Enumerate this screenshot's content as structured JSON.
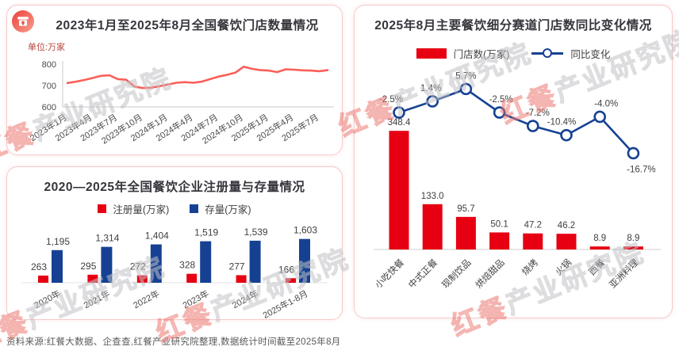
{
  "page": {
    "footer": "资料来源:红餐大数据、企查查,红餐产业研究院整理,数据统计时间截至2025年8月",
    "watermark_red": "红餐",
    "watermark_gray": "产业研究院",
    "colors": {
      "accent_red": "#e60012",
      "coral_line": "#fa5f58",
      "navy": "#164193",
      "title_dark": "#35353c",
      "unit_red": "#b5443c",
      "card_border": "#f6caca",
      "footer_gray": "#595959"
    }
  },
  "chart_data": [
    {
      "id": "store-count-trend",
      "type": "line",
      "title": "2023年1月至2025年8月全国餐饮门店数量情况",
      "unit_label": "单位:万家",
      "tick_labels": [
        "2023年1月",
        "2023年4月",
        "2023年7月",
        "2023年10月",
        "2024年1月",
        "2024年4月",
        "2024年7月",
        "2024年10月",
        "2025年1月",
        "2025年4月",
        "2025年7月"
      ],
      "values": [
        712,
        718,
        726,
        735,
        745,
        748,
        730,
        727,
        695,
        688,
        690,
        697,
        705,
        713,
        716,
        713,
        718,
        730,
        742,
        750,
        760,
        788,
        778,
        772,
        770,
        763,
        776,
        774,
        771,
        770,
        767,
        772
      ],
      "ylim": [
        600,
        800
      ],
      "yticks": [
        800,
        700,
        600
      ],
      "line_color": "#fa5f58",
      "grid": false,
      "legend_position": "none"
    },
    {
      "id": "registration-stock",
      "type": "bar",
      "title": "2020—2025年全国餐饮企业注册量与存量情况",
      "categories": [
        "2020年",
        "2021年",
        "2022年",
        "2023年",
        "2024年",
        "2025年1-8月"
      ],
      "series": [
        {
          "name": "注册量(万家)",
          "color": "#e60012",
          "values": [
            263,
            295,
            272,
            328,
            277,
            166
          ],
          "labels": [
            "263",
            "295",
            "272",
            "328",
            "277",
            "166"
          ]
        },
        {
          "name": "存量(万家)",
          "color": "#164193",
          "values": [
            1195,
            1314,
            1404,
            1519,
            1539,
            1603
          ],
          "labels": [
            "1,195",
            "1,314",
            "1,404",
            "1,519",
            "1,539",
            "1,603"
          ]
        }
      ],
      "grid": false,
      "legend_position": "top"
    },
    {
      "id": "segment-yoy",
      "type": "bar_line_combo",
      "title": "2025年8月主要餐饮细分赛道门店数同比变化情况",
      "categories": [
        "小吃快餐",
        "中式正餐",
        "现制饮品",
        "烘焙甜品",
        "烧烤",
        "火锅",
        "西餐",
        "亚洲料理"
      ],
      "bar_series": {
        "name": "门店数(万家)",
        "color": "#e60012",
        "values": [
          348.4,
          133.0,
          95.7,
          50.1,
          47.2,
          46.2,
          8.9,
          8.9
        ],
        "labels": [
          "348.4",
          "133.0",
          "95.7",
          "50.1",
          "47.2",
          "46.2",
          "8.9",
          "8.9"
        ]
      },
      "line_series": {
        "name": "同比变化",
        "color": "#164193",
        "values": [
          -2.5,
          1.4,
          5.7,
          -2.5,
          -7.2,
          -10.4,
          -4.0,
          -16.7
        ],
        "labels": [
          "-2.5%",
          "1.4%",
          "5.7%",
          "-2.5%",
          "-7.2%",
          "-10.4%",
          "-4.0%",
          "-16.7%"
        ]
      },
      "grid": false,
      "legend_position": "top"
    }
  ]
}
